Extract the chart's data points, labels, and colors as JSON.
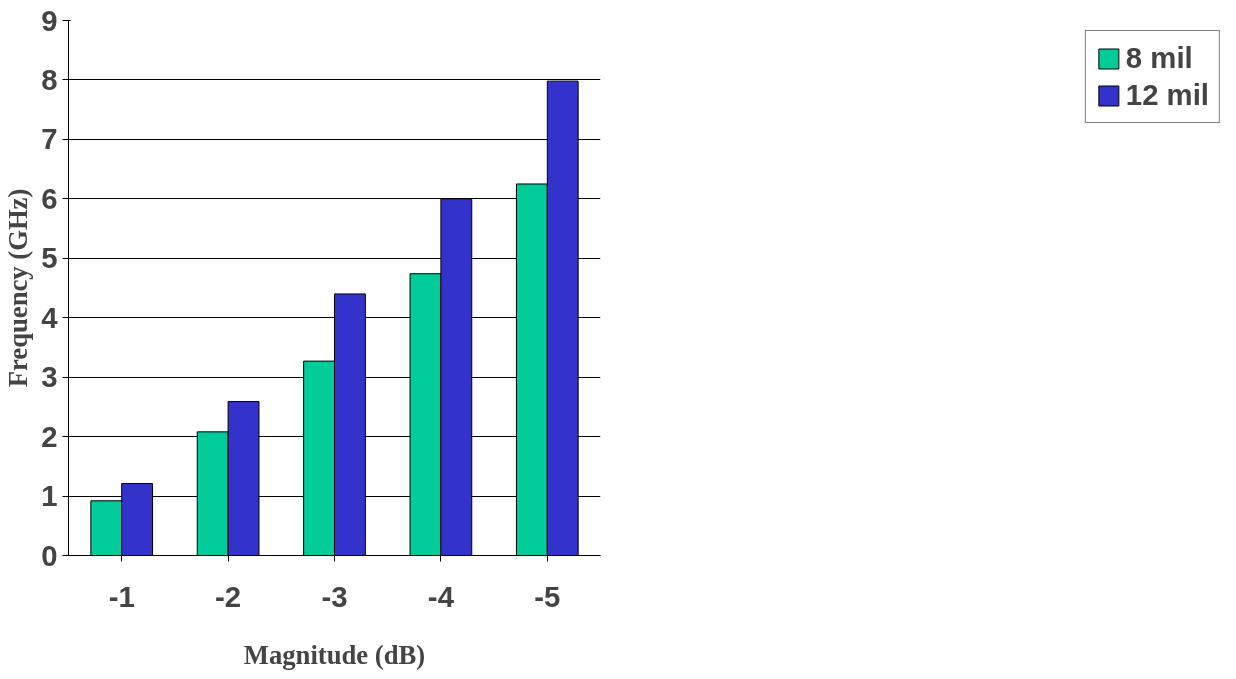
{
  "chart_data": {
    "type": "bar",
    "xlabel": "Magnitude (dB)",
    "ylabel": "Frequency (GHz)",
    "categories": [
      "-1",
      "-2",
      "-3",
      "-4",
      "-5"
    ],
    "series": [
      {
        "name": "8 mil",
        "color": "#00cc99",
        "values": [
          0.92,
          2.08,
          3.27,
          4.74,
          6.25
        ]
      },
      {
        "name": "12 mil",
        "color": "#3333cc",
        "values": [
          1.21,
          2.59,
          4.4,
          6.0,
          7.98
        ]
      }
    ],
    "ylim": [
      0,
      9
    ],
    "yticks": [
      0,
      1,
      2,
      3,
      4,
      5,
      6,
      7,
      8,
      9
    ],
    "grid": "y",
    "legend": "right"
  }
}
